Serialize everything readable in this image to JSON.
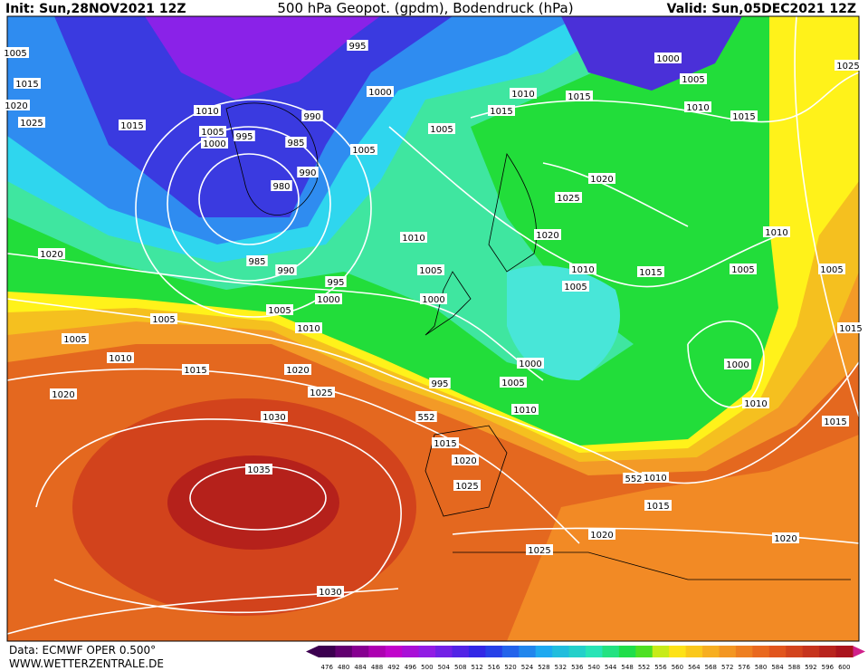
{
  "header": {
    "init": "Init: Sun,28NOV2021 12Z",
    "title": "500 hPa Geopot. (gpdm), Bodendruck (hPa)",
    "valid": "Valid: Sun,05DEC2021 12Z"
  },
  "footer": {
    "source": "Data: ECMWF OPER 0.500°",
    "site": "WWW.WETTERZENTRALE.DE"
  },
  "colorbar": {
    "ticks": [
      476,
      480,
      484,
      488,
      492,
      496,
      500,
      504,
      508,
      512,
      516,
      520,
      524,
      528,
      532,
      536,
      540,
      544,
      548,
      552,
      556,
      560,
      564,
      568,
      572,
      576,
      580,
      584,
      588,
      592,
      596,
      600
    ]
  },
  "isobar_labels": [
    995,
    1005,
    1015,
    1000,
    1005,
    1025,
    1020,
    1010,
    1000,
    1010,
    1015,
    1015,
    1010,
    1015,
    1025,
    1015,
    990,
    1005,
    995,
    1000,
    985,
    1005,
    1005,
    990,
    980,
    1020,
    1025,
    1010,
    1020,
    1010,
    1020,
    985,
    990,
    1005,
    1010,
    1015,
    1005,
    1005,
    995,
    1005,
    1000,
    1000,
    1005,
    1005,
    1010,
    1015,
    1005,
    1010,
    1000,
    1000,
    1015,
    1020,
    995,
    1005,
    1020,
    1025,
    1010,
    1010,
    552,
    1030,
    1015,
    1015,
    1020,
    1035,
    552,
    1010,
    1025,
    1015,
    1020,
    1025,
    1020,
    1030
  ]
}
